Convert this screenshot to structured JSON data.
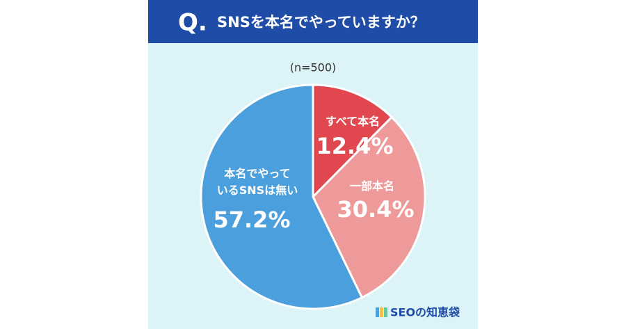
{
  "chart_data": {
    "type": "pie",
    "badge": "Q.",
    "title": "SNSを本名でやっていますか？",
    "subtitle": "(n=500)",
    "categories": [
      "すべて本名",
      "一部本名",
      "本名でやって\nいるSNSは無い"
    ],
    "values": [
      12.4,
      30.4,
      57.2
    ],
    "value_labels": [
      "12.4%",
      "30.4%",
      "57.2%"
    ],
    "colors": [
      "#e0474f",
      "#ef9a9a",
      "#4a9fdc"
    ],
    "logo": "SEOの知恵袋"
  }
}
